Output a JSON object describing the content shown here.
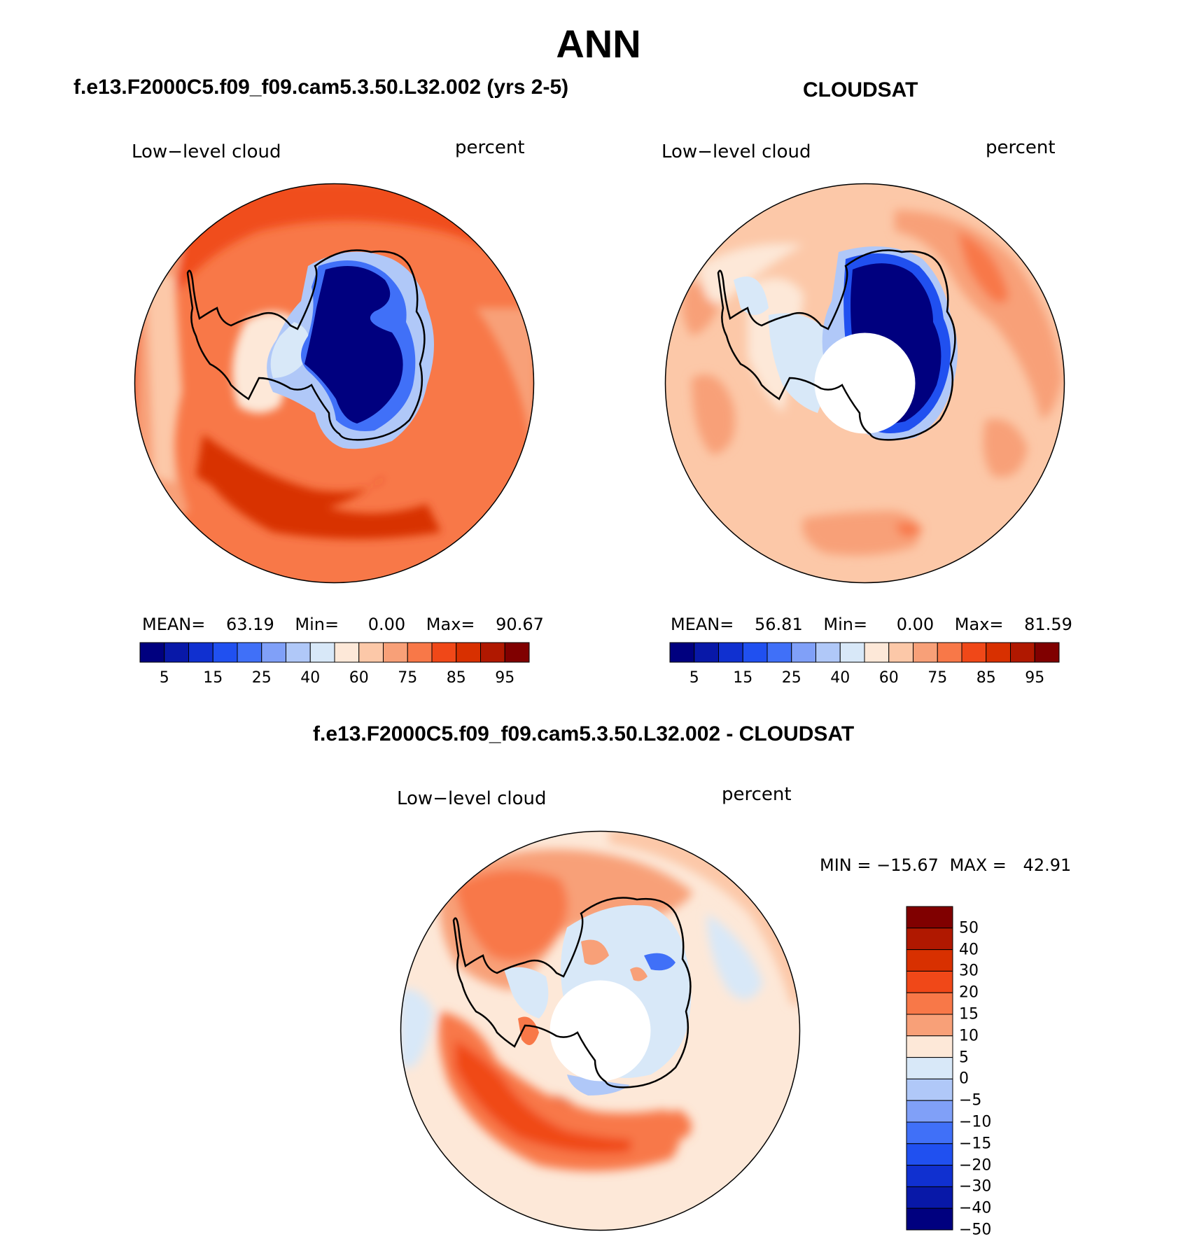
{
  "main_title": "ANN",
  "panels": {
    "model": {
      "title": "f.e13.F2000C5.f09_f09.cam5.3.50.L32.002 (yrs 2-5)",
      "variable": "Low−level cloud",
      "units": "percent",
      "stats": {
        "mean_label": "MEAN=",
        "mean": "63.19",
        "min_label": "Min=",
        "min": "0.00",
        "max_label": "Max=",
        "max": "90.67"
      }
    },
    "obs": {
      "title": "CLOUDSAT",
      "variable": "Low−level cloud",
      "units": "percent",
      "stats": {
        "mean_label": "MEAN=",
        "mean": "56.81",
        "min_label": "Min=",
        "min": "0.00",
        "max_label": "Max=",
        "max": "81.59"
      }
    },
    "diff": {
      "title": "f.e13.F2000C5.f09_f09.cam5.3.50.L32.002 - CLOUDSAT",
      "variable": "Low−level cloud",
      "units": "percent",
      "stats": {
        "min_label": "MIN =",
        "min": "−15.67",
        "max_label": "MAX =",
        "max": "42.91"
      }
    }
  },
  "colorbar_abs": {
    "colors": [
      "#00007f",
      "#0818a8",
      "#1030d0",
      "#2050f0",
      "#4070f8",
      "#80a0f8",
      "#b0c8f8",
      "#d8e8f8",
      "#fde8d8",
      "#fcc8a8",
      "#f8a078",
      "#f87848",
      "#f04818",
      "#d83000",
      "#b01800",
      "#800000"
    ],
    "ticks": [
      "5",
      "15",
      "25",
      "40",
      "60",
      "75",
      "85",
      "95"
    ]
  },
  "colorbar_diff": {
    "colors": [
      "#800000",
      "#b01800",
      "#d83000",
      "#f04818",
      "#f87848",
      "#f8a078",
      "#fde8d8",
      "#d8e8f8",
      "#b0c8f8",
      "#80a0f8",
      "#4070f8",
      "#2050f0",
      "#1030d0",
      "#0818a8",
      "#00007f"
    ],
    "ticks": [
      "50",
      "40",
      "30",
      "20",
      "15",
      "10",
      "5",
      "0",
      "−5",
      "−10",
      "−15",
      "−20",
      "−30",
      "−40",
      "−50"
    ]
  }
}
